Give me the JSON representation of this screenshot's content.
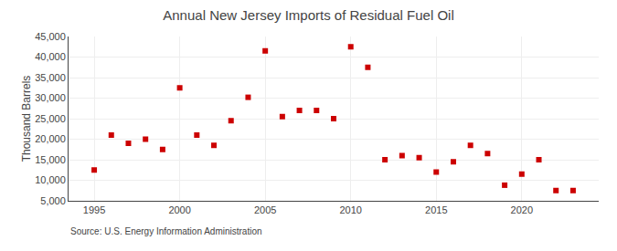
{
  "chart_data": {
    "type": "scatter",
    "title": "Annual New Jersey Imports of Residual Fuel Oil",
    "ylabel": "Thousand Barrels",
    "annotations": [
      "Source: U.S. Energy Information Administration"
    ],
    "x": [
      1995,
      1996,
      1997,
      1998,
      1999,
      2000,
      2001,
      2002,
      2003,
      2004,
      2005,
      2006,
      2007,
      2008,
      2009,
      2010,
      2011,
      2012,
      2013,
      2014,
      2015,
      2016,
      2017,
      2018,
      2019,
      2020,
      2021,
      2022,
      2023
    ],
    "values": [
      12500,
      21000,
      19000,
      20000,
      17500,
      32500,
      21000,
      18500,
      24500,
      30200,
      41500,
      25500,
      27000,
      27000,
      25000,
      42500,
      37500,
      15000,
      16000,
      15500,
      12000,
      14500,
      18500,
      16500,
      8800,
      11500,
      15000,
      7500,
      7500
    ],
    "color": "#cc0000",
    "marker": "square",
    "xlim": [
      1993.5,
      2024.5
    ],
    "xticks": [
      1995,
      2000,
      2005,
      2010,
      2015,
      2020
    ],
    "ylim": [
      5000,
      45000
    ],
    "yticks": [
      {
        "value": 5000,
        "label": "5,000"
      },
      {
        "value": 10000,
        "label": "10,000"
      },
      {
        "value": 15000,
        "label": "15,000"
      },
      {
        "value": 20000,
        "label": "20,000"
      },
      {
        "value": 25000,
        "label": "25,000"
      },
      {
        "value": 30000,
        "label": "30,000"
      },
      {
        "value": 35000,
        "label": "35,000"
      },
      {
        "value": 40000,
        "label": "40,000"
      },
      {
        "value": 45000,
        "label": "45,000"
      }
    ],
    "grid": true
  }
}
